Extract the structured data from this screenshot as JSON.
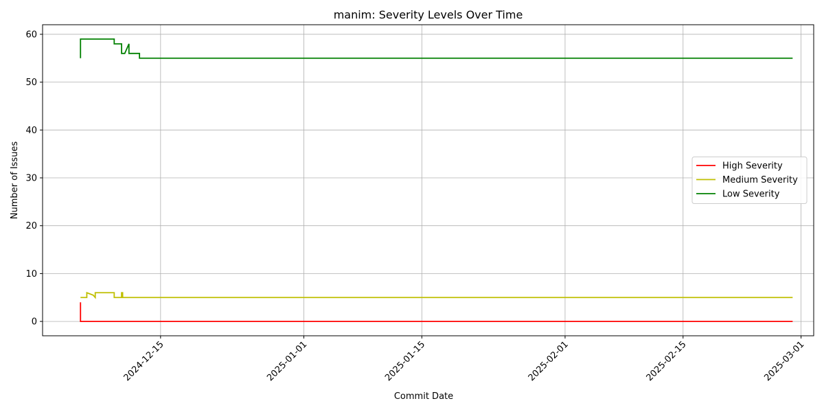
{
  "chart_data": {
    "type": "line",
    "title": "manim: Severity Levels Over Time",
    "xlabel": "Commit Date",
    "ylabel": "Number of Issues",
    "xlim": [
      "2024-12-01T00:00",
      "2025-03-02T12:00"
    ],
    "ylim": [
      -3,
      62
    ],
    "x_ticks": [
      "2024-12-15",
      "2025-01-01",
      "2025-01-15",
      "2025-02-01",
      "2025-02-15",
      "2025-03-01"
    ],
    "y_ticks": [
      0,
      10,
      20,
      30,
      40,
      50,
      60
    ],
    "grid": true,
    "legend_position": "center-right",
    "series": [
      {
        "name": "High Severity",
        "color": "#ff0000",
        "x": [
          "2024-12-05T12:00",
          "2024-12-05T12:00",
          "2025-02-28T00:00"
        ],
        "y": [
          4,
          0,
          0
        ]
      },
      {
        "name": "Medium Severity",
        "color": "#bfbf00",
        "x": [
          "2024-12-05T12:00",
          "2024-12-06T06:00",
          "2024-12-06T06:00",
          "2024-12-07T00:00",
          "2024-12-07T06:00",
          "2024-12-07T06:00",
          "2024-12-09T12:00",
          "2024-12-09T12:00",
          "2024-12-10T09:00",
          "2024-12-10T09:00",
          "2024-12-10T12:00",
          "2024-12-10T12:00",
          "2025-02-28T00:00"
        ],
        "y": [
          5,
          5,
          6,
          5.5,
          5,
          6,
          6,
          5,
          5,
          6,
          6,
          5,
          5
        ]
      },
      {
        "name": "Low Severity",
        "color": "#008000",
        "x": [
          "2024-12-05T12:00",
          "2024-12-05T12:00",
          "2024-12-09T12:00",
          "2024-12-09T12:00",
          "2024-12-10T09:00",
          "2024-12-10T09:00",
          "2024-12-10T18:00",
          "2024-12-11T06:00",
          "2024-12-11T06:00",
          "2024-12-12T12:00",
          "2024-12-12T12:00",
          "2025-02-28T00:00"
        ],
        "y": [
          55,
          59,
          59,
          58,
          58,
          56,
          56,
          58,
          56,
          56,
          55,
          55
        ]
      }
    ]
  }
}
